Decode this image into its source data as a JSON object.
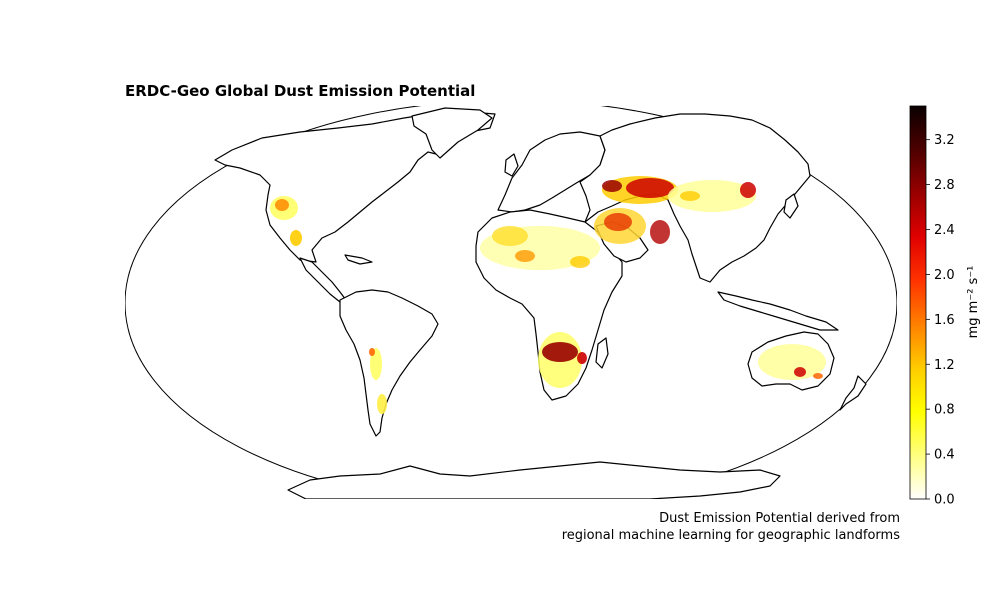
{
  "title": "ERDC-Geo Global Dust Emission Potential",
  "caption": {
    "line1": "Dust Emission Potential derived from",
    "line2": "regional machine learning for geographic landforms"
  },
  "colorbar": {
    "label": "mg m⁻² s⁻¹",
    "colormap": "hot_r",
    "min": 0.0,
    "max": 3.5,
    "ticks": [
      "0.0",
      "0.4",
      "0.8",
      "1.2",
      "1.6",
      "2.0",
      "2.4",
      "2.8",
      "3.2"
    ],
    "stops": [
      "#ffffff",
      "#ffff80",
      "#ffff00",
      "#ffcc00",
      "#ff8000",
      "#ff3300",
      "#e00000",
      "#990000",
      "#4d0000",
      "#0a0000"
    ]
  },
  "map": {
    "projection": "Robinson",
    "land_outline_color": "#000000",
    "ocean_color": "#ffffff"
  },
  "dust_regions": [
    {
      "name": "Southwest USA / Mexico",
      "level": "low-medium"
    },
    {
      "name": "Sahara / Sahel",
      "level": "low-medium"
    },
    {
      "name": "Arabian Peninsula / Middle East",
      "level": "medium-high"
    },
    {
      "name": "Central Asia",
      "level": "high"
    },
    {
      "name": "Gobi / Taklamakan",
      "level": "low-high"
    },
    {
      "name": "Southern Africa (Kalahari)",
      "level": "high"
    },
    {
      "name": "South America (Andes / Patagonia)",
      "level": "low-medium"
    },
    {
      "name": "Australia",
      "level": "low-medium"
    }
  ]
}
